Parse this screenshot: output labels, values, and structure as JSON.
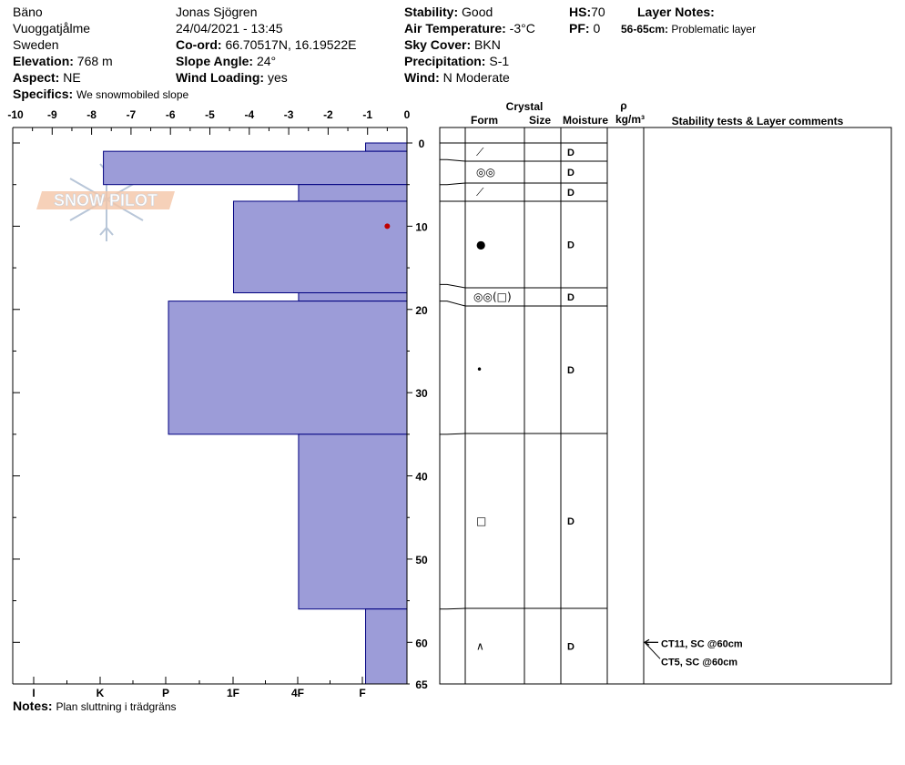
{
  "header": {
    "location": "Bäno",
    "region": "Vuoggatjålme",
    "country": "Sweden",
    "elevation_label": "Elevation:",
    "elevation": "768 m",
    "aspect_label": "Aspect:",
    "aspect": "NE",
    "specifics_label": "Specifics:",
    "specifics": "We snowmobiled slope",
    "observer": "Jonas Sjögren",
    "datetime": "24/04/2021 - 13:45",
    "coord_label": "Co-ord:",
    "coord": "66.70517N, 16.19522E",
    "slope_label": "Slope Angle:",
    "slope": "24°",
    "wind_loading_label": "Wind Loading:",
    "wind_loading": "yes",
    "stability_label": "Stability:",
    "stability": "Good",
    "air_temp_label": "Air Temperature:",
    "air_temp": "-3°C",
    "sky_label": "Sky Cover:",
    "sky": "BKN",
    "precip_label": "Precipitation:",
    "precip": "S-1",
    "wind_label": "Wind:",
    "wind": "N Moderate",
    "hs_label": "HS:",
    "hs": "70",
    "pf_label": "PF:",
    "pf": "0",
    "layer_notes_label": "Layer Notes:",
    "layer_note_range": "56-65cm:",
    "layer_note_text": "Problematic layer",
    "notes_label": "Notes:",
    "notes": "Plan sluttning i trädgräns"
  },
  "logo_text": "SNOW PILOT",
  "columns": {
    "crystal": "Crystal",
    "form": "Form",
    "size": "Size",
    "moisture": "Moisture",
    "rho": "ρ",
    "density_unit": "kg/m³",
    "stability": "Stability tests & Layer comments"
  },
  "chart_data": {
    "type": "bar",
    "orientation": "horizontal",
    "depth_axis": {
      "range": [
        0,
        65
      ],
      "ticks": [
        "0",
        "10",
        "20",
        "30",
        "40",
        "50",
        "60",
        "65"
      ]
    },
    "temperature_axis": {
      "range": [
        -10,
        0
      ],
      "ticks": [
        "-10",
        "-9",
        "-8",
        "-7",
        "-6",
        "-5",
        "-4",
        "-3",
        "-2",
        "-1",
        "0"
      ]
    },
    "hardness_axis": {
      "ticks": [
        "I",
        "K",
        "P",
        "1F",
        "4F",
        "F"
      ]
    },
    "hardness_layers": [
      {
        "top": 0,
        "bottom": 1,
        "hardness": 1.05
      },
      {
        "top": 1,
        "bottom": 5,
        "hardness": 7.7
      },
      {
        "top": 5,
        "bottom": 7,
        "hardness": 2.75
      },
      {
        "top": 7,
        "bottom": 18,
        "hardness": 4.4
      },
      {
        "top": 18,
        "bottom": 19,
        "hardness": 2.75
      },
      {
        "top": 19,
        "bottom": 35,
        "hardness": 6.05
      },
      {
        "top": 35,
        "bottom": 56,
        "hardness": 2.75
      },
      {
        "top": 56,
        "bottom": 65,
        "hardness": 1.05
      }
    ],
    "temperature_points": [
      {
        "depth": 10,
        "temp": -0.5
      }
    ],
    "layers": [
      {
        "top": 0,
        "bottom": 2,
        "form": "⟋",
        "moisture": "D"
      },
      {
        "top": 2,
        "bottom": 5,
        "form": "◎◎",
        "moisture": "D"
      },
      {
        "top": 5,
        "bottom": 7,
        "form": "⟋",
        "moisture": "D"
      },
      {
        "top": 7,
        "bottom": 17,
        "form": "●",
        "moisture": "D"
      },
      {
        "top": 17,
        "bottom": 19,
        "form": "◎◎(□)",
        "moisture": "D"
      },
      {
        "top": 19,
        "bottom": 35,
        "form": "•",
        "moisture": "D"
      },
      {
        "top": 35,
        "bottom": 56,
        "form": "□",
        "moisture": "D"
      },
      {
        "top": 56,
        "bottom": 65,
        "form": "∧",
        "moisture": "D"
      }
    ],
    "stability_tests": [
      {
        "depth": 60,
        "label": "CT11, SC @60cm"
      },
      {
        "depth": 60,
        "label": "CT5, SC @60cm"
      }
    ]
  }
}
